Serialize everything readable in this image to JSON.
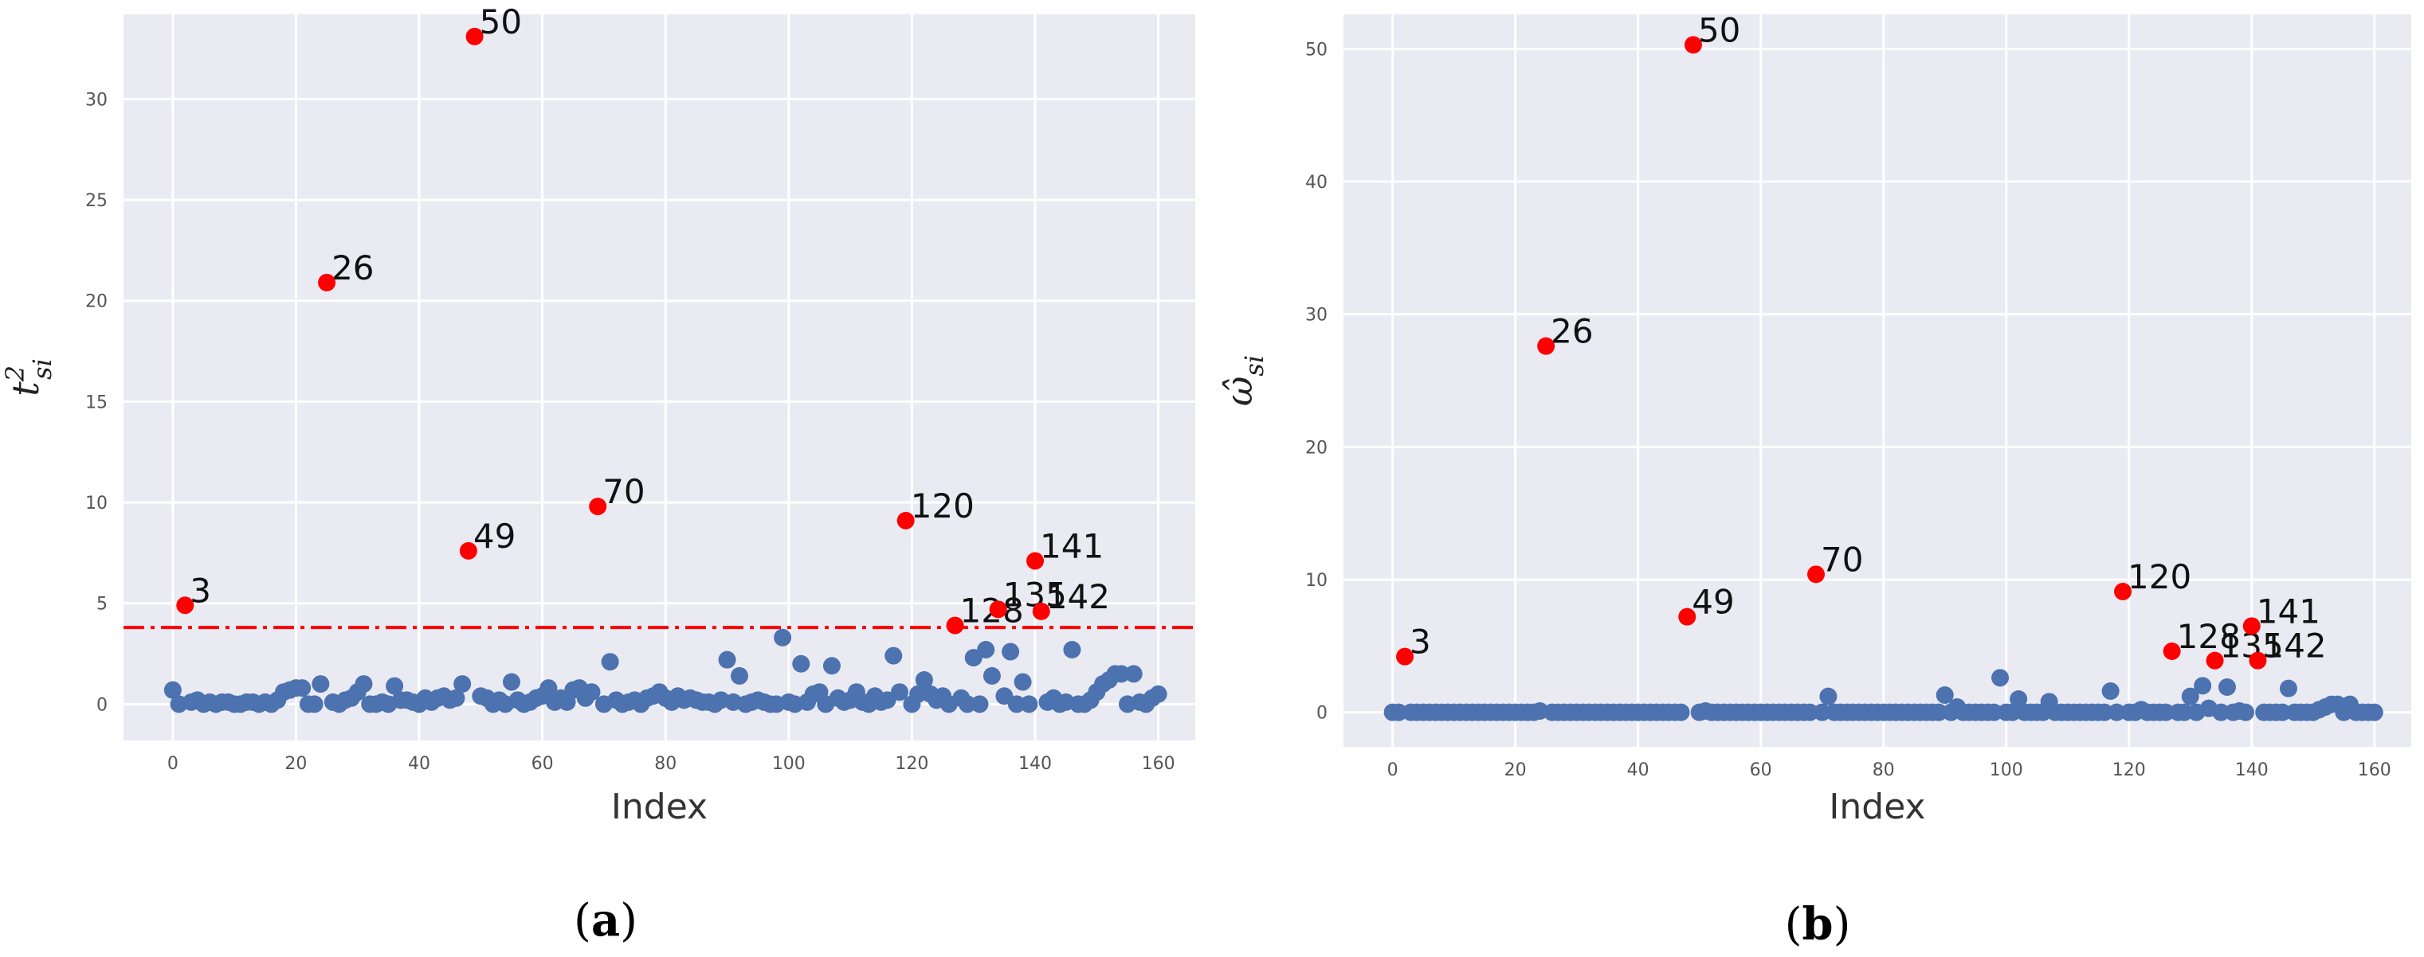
{
  "chart_data": [
    {
      "type": "scatter",
      "panel_label": "(a)",
      "xlabel": "Index",
      "ylabel_base": "t",
      "ylabel_sup": "2",
      "ylabel_sub": "si",
      "xlim": [
        -8,
        166
      ],
      "ylim": [
        -1.8,
        34.2
      ],
      "xticks": [
        0,
        20,
        40,
        60,
        80,
        100,
        120,
        140,
        160
      ],
      "yticks": [
        0,
        5,
        10,
        15,
        20,
        25,
        30
      ],
      "grid": true,
      "threshold": 3.8,
      "colors": {
        "normal": "#4c72b0",
        "outlier": "#ff0000",
        "threshold": "#ff0000",
        "background": "#eaeaf2",
        "grid": "#ffffff"
      },
      "normal_points": [
        0.7,
        0.0,
        0.1,
        0.2,
        0.0,
        0.1,
        0.0,
        0.1,
        0.1,
        0.0,
        0.0,
        0.1,
        0.1,
        0.0,
        0.1,
        0.0,
        0.2,
        0.6,
        0.7,
        0.8,
        0.8,
        0.0,
        0.0,
        1.0,
        0.1,
        0.0,
        0.2,
        0.3,
        0.6,
        1.0,
        0.0,
        0.0,
        0.1,
        0.0,
        0.9,
        0.2,
        0.2,
        0.1,
        0.0,
        0.3,
        0.1,
        0.3,
        0.4,
        0.2,
        0.3,
        1.0,
        0.4,
        0.3,
        0.0,
        0.2,
        0.0,
        1.1,
        0.2,
        0.0,
        0.1,
        0.3,
        0.4,
        0.8,
        0.1,
        0.3,
        0.1,
        0.7,
        0.8,
        0.3,
        0.6,
        0.0,
        2.1,
        0.2,
        0.0,
        0.1,
        0.2,
        0.0,
        0.3,
        0.4,
        0.6,
        0.3,
        0.1,
        0.4,
        0.2,
        0.3,
        0.2,
        0.1,
        0.1,
        0.0,
        0.2,
        2.2,
        0.1,
        1.4,
        0.0,
        0.1,
        0.2,
        0.1,
        0.0,
        0.0,
        3.3,
        0.1,
        0.0,
        2.0,
        0.1,
        0.5,
        0.6,
        0.0,
        1.9,
        0.3,
        0.1,
        0.2,
        0.6,
        0.1,
        0.0,
        0.4,
        0.1,
        0.2,
        2.4,
        0.6,
        0.0,
        0.5,
        1.2,
        0.5,
        0.2,
        0.4,
        0.0,
        0.3,
        0.0,
        2.3,
        0.0,
        2.7,
        1.4,
        0.4,
        2.6,
        0.0,
        1.1,
        0.0,
        0.1,
        0.3,
        0.0,
        0.1,
        2.7,
        0.0,
        0.0,
        0.2,
        0.6,
        1.0,
        1.2,
        1.5,
        1.5,
        0.0,
        1.5,
        0.1,
        0.0,
        0.3,
        0.5
      ],
      "outliers": [
        {
          "index": 2,
          "value": 4.9,
          "label": "3"
        },
        {
          "index": 25,
          "value": 20.9,
          "label": "26"
        },
        {
          "index": 48,
          "value": 7.6,
          "label": "49"
        },
        {
          "index": 49,
          "value": 33.1,
          "label": "50"
        },
        {
          "index": 69,
          "value": 9.8,
          "label": "70"
        },
        {
          "index": 119,
          "value": 9.1,
          "label": "120"
        },
        {
          "index": 127,
          "value": 3.9,
          "label": "128"
        },
        {
          "index": 134,
          "value": 4.7,
          "label": "135"
        },
        {
          "index": 140,
          "value": 7.1,
          "label": "141"
        },
        {
          "index": 141,
          "value": 4.6,
          "label": "142"
        }
      ]
    },
    {
      "type": "scatter",
      "panel_label": "(b)",
      "xlabel": "Index",
      "ylabel_base": "ω̂",
      "ylabel_sup": "",
      "ylabel_sub": "si",
      "xlim": [
        -8,
        166
      ],
      "ylim": [
        -2.6,
        52.6
      ],
      "xticks": [
        0,
        20,
        40,
        60,
        80,
        100,
        120,
        140,
        160
      ],
      "yticks": [
        0,
        10,
        20,
        30,
        40,
        50
      ],
      "grid": true,
      "colors": {
        "normal": "#4c72b0",
        "outlier": "#ff0000",
        "background": "#eaeaf2",
        "grid": "#ffffff"
      },
      "normal_points": [
        0.0,
        0.0,
        0.0,
        0.0,
        0.0,
        0.0,
        0.0,
        0.0,
        0.0,
        0.0,
        0.0,
        0.0,
        0.0,
        0.0,
        0.0,
        0.0,
        0.0,
        0.0,
        0.0,
        0.0,
        0.0,
        0.0,
        0.0,
        0.1,
        0.0,
        0.0,
        0.0,
        0.0,
        0.0,
        0.0,
        0.0,
        0.0,
        0.0,
        0.0,
        0.0,
        0.0,
        0.0,
        0.0,
        0.0,
        0.0,
        0.0,
        0.0,
        0.0,
        0.0,
        0.0,
        0.0,
        0.0,
        0.1,
        0.0,
        0.0,
        0.0,
        0.0,
        0.0,
        0.0,
        0.0,
        0.0,
        0.0,
        0.0,
        0.0,
        0.0,
        0.0,
        0.0,
        0.0,
        0.0,
        0.0,
        0.0,
        1.2,
        0.0,
        0.0,
        0.0,
        0.0,
        0.0,
        0.0,
        0.0,
        0.0,
        0.0,
        0.0,
        0.0,
        0.0,
        0.0,
        0.0,
        0.0,
        0.0,
        0.0,
        0.0,
        1.3,
        0.0,
        0.4,
        0.0,
        0.0,
        0.0,
        0.0,
        0.0,
        0.0,
        2.6,
        0.0,
        0.0,
        1.0,
        0.0,
        0.0,
        0.0,
        0.0,
        0.8,
        0.0,
        0.0,
        0.0,
        0.0,
        0.0,
        0.0,
        0.0,
        0.0,
        0.0,
        1.6,
        0.0,
        0.0,
        0.0,
        0.2,
        0.0,
        0.0,
        0.0,
        0.0,
        0.0,
        0.0,
        1.2,
        0.0,
        2.0,
        0.3,
        0.0,
        1.9,
        0.0,
        0.1,
        0.0,
        0.0,
        0.0,
        0.0,
        0.0,
        1.8,
        0.0,
        0.0,
        0.0,
        0.0,
        0.2,
        0.4,
        0.6,
        0.6,
        0.0,
        0.6,
        0.0,
        0.0,
        0.0,
        0.0
      ],
      "outliers": [
        {
          "index": 2,
          "value": 4.2,
          "label": "3"
        },
        {
          "index": 25,
          "value": 27.6,
          "label": "26"
        },
        {
          "index": 48,
          "value": 7.2,
          "label": "49"
        },
        {
          "index": 49,
          "value": 50.3,
          "label": "50"
        },
        {
          "index": 69,
          "value": 10.4,
          "label": "70"
        },
        {
          "index": 119,
          "value": 9.1,
          "label": "120"
        },
        {
          "index": 127,
          "value": 4.6,
          "label": "128"
        },
        {
          "index": 134,
          "value": 3.9,
          "label": "135"
        },
        {
          "index": 140,
          "value": 6.5,
          "label": "141"
        },
        {
          "index": 141,
          "value": 3.9,
          "label": "142"
        }
      ]
    }
  ]
}
